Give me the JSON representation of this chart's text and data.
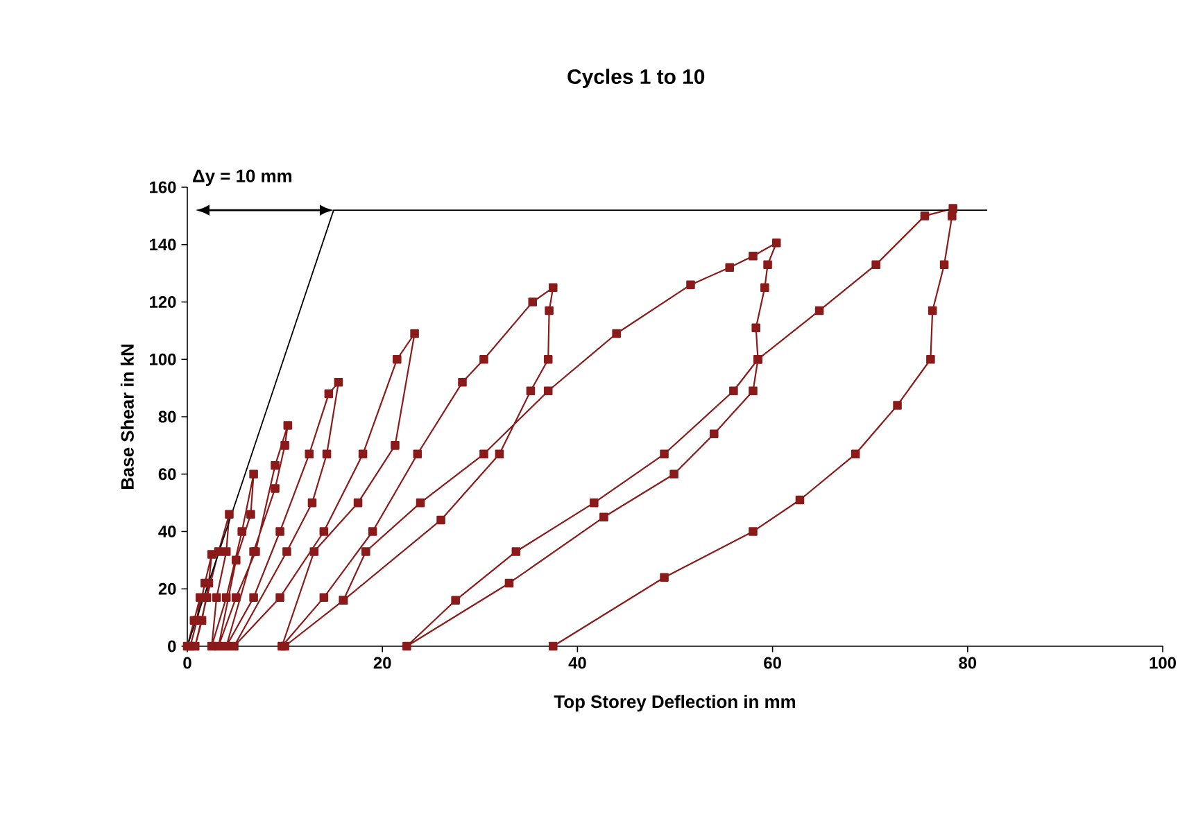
{
  "chart_data": {
    "type": "line",
    "title": "Cycles 1 to 10",
    "xlabel": "Top Storey Deflection in mm",
    "ylabel": "Base Shear in kN",
    "annotations": [
      "Δy = 10 mm"
    ],
    "xlim": [
      0,
      100
    ],
    "xticks": [
      0,
      20,
      40,
      60,
      80,
      100
    ],
    "ylim": [
      0,
      160
    ],
    "yticks": [
      0,
      20,
      40,
      60,
      80,
      100,
      120,
      140,
      160
    ],
    "marker": "square",
    "series": [
      {
        "color": "#8b1a1a",
        "x": [
          0,
          0.7,
          1.3,
          1,
          0.3,
          1,
          1.8,
          2.5,
          2.2,
          1.5,
          0.8,
          2,
          3.2,
          4.3,
          4,
          3,
          2.5,
          4,
          5.6,
          6.8,
          6.5,
          5,
          3.2,
          5,
          7,
          9,
          10.3,
          10,
          9,
          6.8,
          4,
          6.8,
          9.5,
          12.5,
          14.5,
          15.5,
          14.3,
          12.8,
          10.2,
          4.8,
          9.5,
          14,
          18,
          21.5,
          23.3,
          21.3,
          17.5,
          13,
          9.7,
          14,
          19,
          23.6,
          28.2,
          30.4,
          35.4,
          37.5,
          37.1,
          37,
          35.2,
          32,
          26,
          16,
          10,
          16,
          18.3,
          23.9,
          30.4,
          37,
          44,
          51.6,
          55.6,
          58,
          60.4,
          59.5,
          59.2,
          58.3,
          58.5,
          58,
          54,
          49.9,
          42.7,
          33,
          22.5,
          27.5,
          33.7,
          41.7,
          48.9,
          56,
          58.5,
          64.8,
          70.6,
          75.6,
          78.5,
          78.4,
          77.6,
          76.4,
          76.2,
          72.8,
          68.5,
          62.8,
          58,
          48.9,
          37.5
        ],
        "values": [
          0,
          9,
          17,
          9,
          0,
          9,
          22,
          32,
          22,
          9,
          0,
          17,
          33,
          46,
          33,
          17,
          0,
          17,
          40,
          60,
          46,
          30,
          0,
          17,
          33,
          63,
          77,
          70,
          55,
          33,
          0,
          17,
          40,
          67,
          88,
          92,
          67,
          50,
          33,
          0,
          17,
          40,
          67,
          100,
          109,
          70,
          50,
          33,
          0,
          17,
          40,
          67,
          92,
          100,
          120,
          125,
          117,
          100,
          89,
          67,
          44,
          16,
          0,
          16,
          33,
          50,
          67,
          89,
          109,
          126,
          132,
          136,
          140.6,
          133,
          125,
          111,
          100,
          89,
          74,
          60,
          45,
          22,
          0,
          16,
          33,
          50,
          67,
          89,
          100,
          117,
          133,
          150,
          152.6,
          150,
          133,
          117,
          100,
          84,
          67,
          51,
          40,
          24,
          0
        ]
      },
      {
        "color": "#000000",
        "marker": "none",
        "x": [
          0,
          15,
          82
        ],
        "values": [
          0,
          152,
          152
        ]
      }
    ]
  }
}
